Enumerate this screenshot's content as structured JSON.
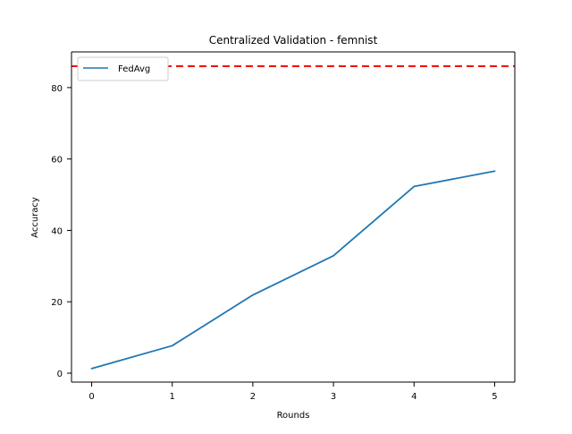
{
  "chart_data": {
    "type": "line",
    "title": "Centralized Validation - femnist",
    "xlabel": "Rounds",
    "ylabel": "Accuracy",
    "xlim": [
      -0.25,
      5.25
    ],
    "ylim": [
      -2.5,
      90
    ],
    "x_ticks": [
      0,
      1,
      2,
      3,
      4,
      5
    ],
    "y_ticks": [
      0,
      20,
      40,
      60,
      80
    ],
    "grid": false,
    "legend_position": "top-left",
    "series": [
      {
        "name": "FedAvg",
        "color": "#1f77b4",
        "x": [
          0,
          1,
          2,
          3,
          4,
          5
        ],
        "y": [
          1.3,
          7.7,
          21.9,
          32.9,
          52.3,
          56.6
        ]
      }
    ],
    "reference_lines": [
      {
        "orientation": "horizontal",
        "y": 86,
        "color": "#ff0000",
        "style": "dashed"
      }
    ]
  }
}
